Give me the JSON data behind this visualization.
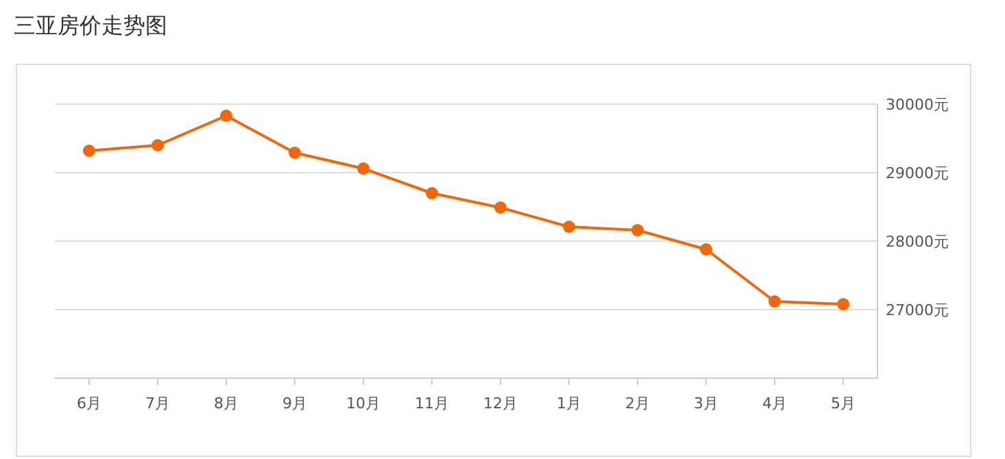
{
  "chart_data": {
    "type": "line",
    "title": "三亚房价走势图",
    "categories": [
      "6月",
      "7月",
      "8月",
      "9月",
      "10月",
      "11月",
      "12月",
      "1月",
      "2月",
      "3月",
      "4月",
      "5月"
    ],
    "series": [
      {
        "color": "#f0670a",
        "values": [
          29320,
          29400,
          29830,
          29290,
          29060,
          28700,
          28490,
          28210,
          28160,
          27880,
          27120,
          27080
        ]
      }
    ],
    "ylim": [
      26000,
      30000
    ],
    "yticks": [
      {
        "value": 27000,
        "label": "27000元"
      },
      {
        "value": 28000,
        "label": "28000元"
      },
      {
        "value": 29000,
        "label": "29000元"
      },
      {
        "value": 30000,
        "label": "30000元"
      }
    ],
    "grid": "y",
    "marker": "circle",
    "line_style": "solid"
  }
}
